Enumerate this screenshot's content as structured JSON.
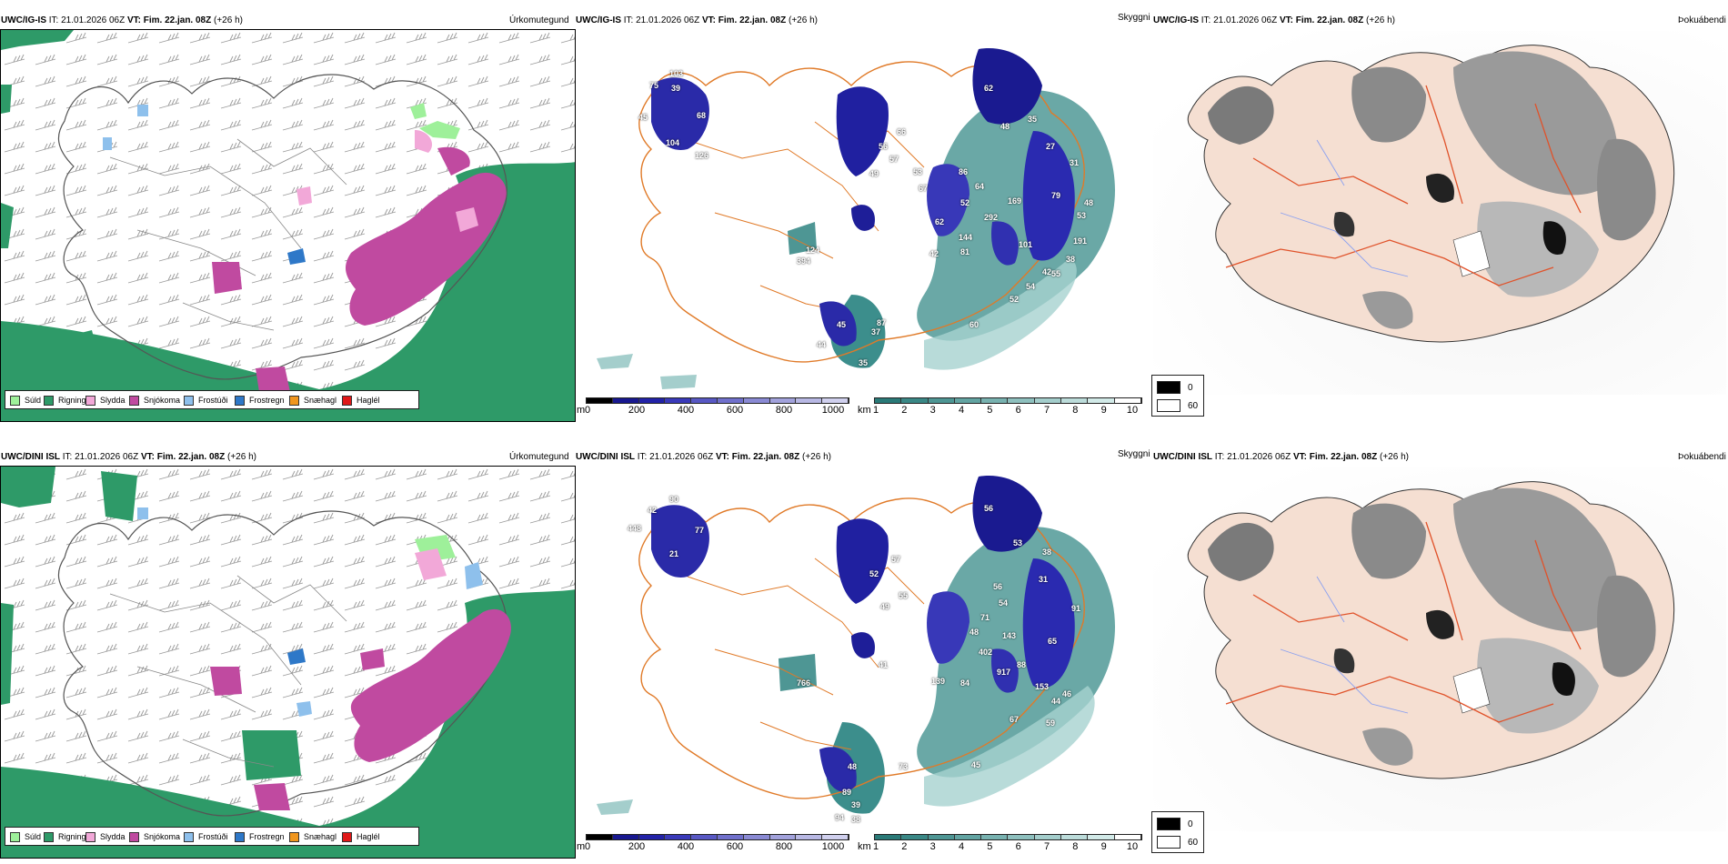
{
  "rows": [
    {
      "model": "UWC/IG-IS",
      "it_label": "IT:",
      "it_value": "21.01.2026 06Z",
      "vt_label": "VT:",
      "vt_value": "Fim. 22.jan. 08Z",
      "lead": "(+26 h)"
    },
    {
      "model": "UWC/DINI ISL",
      "it_label": "IT:",
      "it_value": "21.01.2026 06Z",
      "vt_label": "VT:",
      "vt_value": "Fim. 22.jan. 08Z",
      "lead": "(+26 h)"
    }
  ],
  "panels": {
    "precip_type": "Úrkomutegund",
    "visibility": "Skyggni",
    "fog": "Þokuábendi"
  },
  "precip_legend": [
    {
      "label": "Súld",
      "color": "#9ef09a"
    },
    {
      "label": "Rigning",
      "color": "#2e9a68"
    },
    {
      "label": "Slydda",
      "color": "#f2a8d8"
    },
    {
      "label": "Snjókoma",
      "color": "#c04aa0"
    },
    {
      "label": "Frostúði",
      "color": "#8ec0ec"
    },
    {
      "label": "Frostregn",
      "color": "#2e78c8"
    },
    {
      "label": "Snæhagl",
      "color": "#f0961e"
    },
    {
      "label": "Haglél",
      "color": "#e01818"
    }
  ],
  "visibility_m": {
    "unit": "m",
    "ticks": [
      "0",
      "200",
      "400",
      "600",
      "800",
      "1000"
    ],
    "colors": [
      "#000000",
      "#181890",
      "#2222a8",
      "#3a3aba",
      "#5858c4",
      "#7070cc",
      "#8a8ad4",
      "#a2a2dc",
      "#b8b8e4",
      "#d0d0ee"
    ]
  },
  "visibility_km": {
    "unit": "km",
    "ticks": [
      "1",
      "2",
      "3",
      "4",
      "5",
      "6",
      "7",
      "8",
      "9",
      "10"
    ],
    "colors": [
      "#2a7a78",
      "#3a8886",
      "#4e9694",
      "#62a4a2",
      "#78b2b0",
      "#8ec0be",
      "#a4cecc",
      "#bcdcda",
      "#d2eae8",
      "#ffffff"
    ]
  },
  "fog_legend": [
    {
      "label": "0",
      "color": "#000000"
    },
    {
      "label": "60",
      "color": "#ffffff"
    }
  ],
  "vis_labels": [
    [
      "103",
      "75",
      "39",
      "45",
      "68",
      "104",
      "126",
      "62",
      "48",
      "35",
      "27",
      "56",
      "66",
      "57",
      "49",
      "53",
      "67",
      "31",
      "86",
      "64",
      "52",
      "169",
      "292",
      "79",
      "48",
      "62",
      "144",
      "53",
      "81",
      "42",
      "124",
      "394",
      "101",
      "191",
      "38",
      "42",
      "54",
      "55",
      "52",
      "60",
      "45",
      "44",
      "37",
      "87",
      "35"
    ],
    [
      "90",
      "42",
      "448",
      "77",
      "21",
      "56",
      "53",
      "38",
      "31",
      "56",
      "52",
      "57",
      "49",
      "55",
      "54",
      "71",
      "91",
      "48",
      "143",
      "65",
      "402",
      "88",
      "917",
      "84",
      "153",
      "46",
      "44",
      "59",
      "41",
      "766",
      "139",
      "67",
      "45",
      "48",
      "73",
      "89",
      "39",
      "38",
      "94"
    ]
  ]
}
